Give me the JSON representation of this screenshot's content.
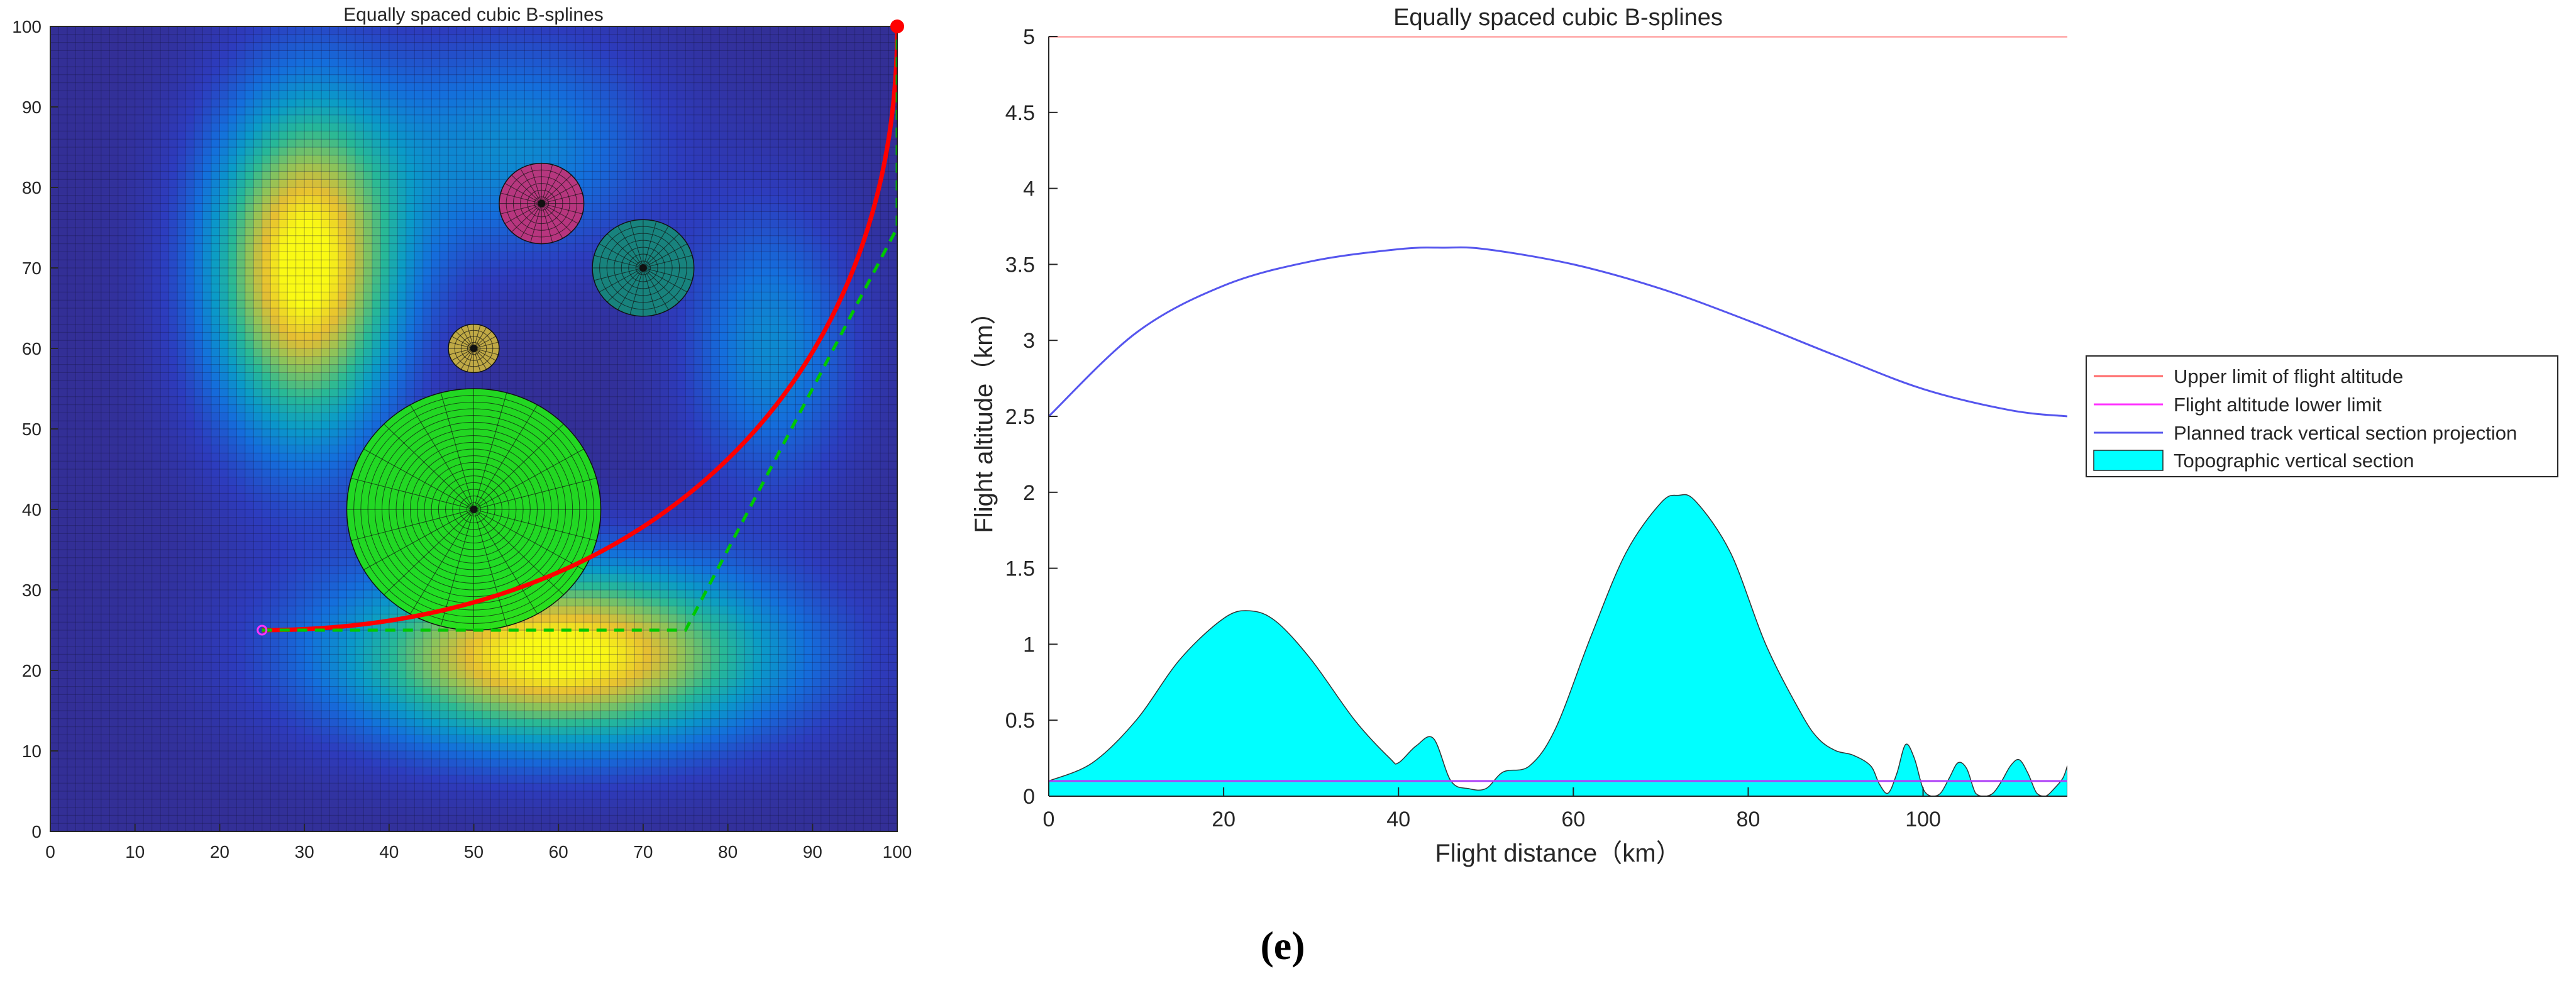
{
  "figure_caption": "(e)",
  "chart_data": [
    {
      "type": "heatmap",
      "title": "Equally spaced cubic B-splines",
      "xlabel": "",
      "ylabel": "",
      "xlim": [
        0,
        100
      ],
      "ylim": [
        0,
        100
      ],
      "xticks": [
        0,
        10,
        20,
        30,
        40,
        50,
        60,
        70,
        80,
        90,
        100
      ],
      "yticks": [
        0,
        10,
        20,
        30,
        40,
        50,
        60,
        70,
        80,
        90,
        100
      ],
      "grid_step": 1,
      "terrain_peaks": [
        {
          "x": 30,
          "y": 70,
          "height": 1.0,
          "sx": 8,
          "sy": 15
        },
        {
          "x": 60,
          "y": 22,
          "height": 1.0,
          "sx": 18,
          "sy": 8
        },
        {
          "x": 55,
          "y": 85,
          "height": 0.35,
          "sx": 12,
          "sy": 10
        },
        {
          "x": 85,
          "y": 60,
          "height": 0.35,
          "sx": 7,
          "sy": 12
        }
      ],
      "threats": [
        {
          "name": "threat-large-green",
          "x": 50,
          "y": 40,
          "r": 15,
          "color": "#22e01b"
        },
        {
          "name": "threat-pink",
          "x": 58,
          "y": 78,
          "r": 5,
          "color": "#c0347a"
        },
        {
          "name": "threat-teal",
          "x": 70,
          "y": 70,
          "r": 6,
          "color": "#17877a"
        },
        {
          "name": "threat-yellow",
          "x": 50,
          "y": 60,
          "r": 3,
          "color": "#c8b040"
        }
      ],
      "start_point": {
        "x": 25,
        "y": 25
      },
      "goal_point": {
        "x": 100,
        "y": 100
      },
      "planned_path": {
        "color": "#ff0000",
        "control_points": [
          [
            25,
            25
          ],
          [
            70,
            25
          ],
          [
            100,
            55
          ],
          [
            100,
            100
          ]
        ]
      },
      "reference_path": {
        "color": "#00c800",
        "points": [
          [
            25,
            25
          ],
          [
            75,
            25
          ],
          [
            100,
            75
          ],
          [
            100,
            100
          ]
        ]
      }
    },
    {
      "type": "area",
      "title": "Equally spaced cubic B-splines",
      "xlabel": "Flight distance（km）",
      "ylabel": "Flight altitude（km）",
      "xlim": [
        0,
        116.5
      ],
      "ylim": [
        0,
        5
      ],
      "xticks": [
        0,
        20,
        40,
        60,
        80,
        100
      ],
      "yticks": [
        0,
        0.5,
        1,
        1.5,
        2,
        2.5,
        3,
        3.5,
        4,
        4.5,
        5
      ],
      "legend_position": "right",
      "series": [
        {
          "name": "Upper limit of flight altitude",
          "color": "#ff6b6b",
          "constant": 5
        },
        {
          "name": "Flight altitude lower limit",
          "color": "#ff33ff",
          "constant": 0.1
        },
        {
          "name": "Planned track vertical section projection",
          "color": "#5555ee",
          "x": [
            0,
            10,
            20,
            30,
            40,
            45,
            50,
            60,
            70,
            80,
            90,
            100,
            110,
            116.5
          ],
          "values": [
            2.5,
            3.05,
            3.36,
            3.52,
            3.6,
            3.61,
            3.6,
            3.5,
            3.34,
            3.13,
            2.9,
            2.68,
            2.54,
            2.5
          ]
        },
        {
          "name": "Topographic vertical section",
          "color": "#00ffff",
          "x": [
            0,
            5,
            10,
            15,
            20,
            23,
            26,
            30,
            35,
            39,
            40,
            42,
            44,
            46,
            48,
            50,
            52,
            55,
            58,
            62,
            66,
            70,
            72,
            74,
            78,
            82,
            86,
            88,
            90,
            92,
            94,
            95,
            96,
            97,
            98,
            99,
            100,
            101,
            102,
            103,
            104,
            105,
            106,
            107,
            108,
            109,
            110,
            111,
            112,
            113,
            114,
            115,
            116,
            116.5
          ],
          "values": [
            0.1,
            0.22,
            0.5,
            0.9,
            1.17,
            1.22,
            1.15,
            0.9,
            0.5,
            0.25,
            0.22,
            0.33,
            0.38,
            0.1,
            0.05,
            0.05,
            0.16,
            0.2,
            0.45,
            1.05,
            1.6,
            1.93,
            1.98,
            1.94,
            1.6,
            1.0,
            0.55,
            0.38,
            0.3,
            0.27,
            0.2,
            0.08,
            0.02,
            0.15,
            0.34,
            0.25,
            0.05,
            0.0,
            0.02,
            0.12,
            0.22,
            0.18,
            0.02,
            0.0,
            0.02,
            0.1,
            0.2,
            0.24,
            0.15,
            0.02,
            0.0,
            0.05,
            0.12,
            0.2
          ]
        }
      ]
    }
  ]
}
